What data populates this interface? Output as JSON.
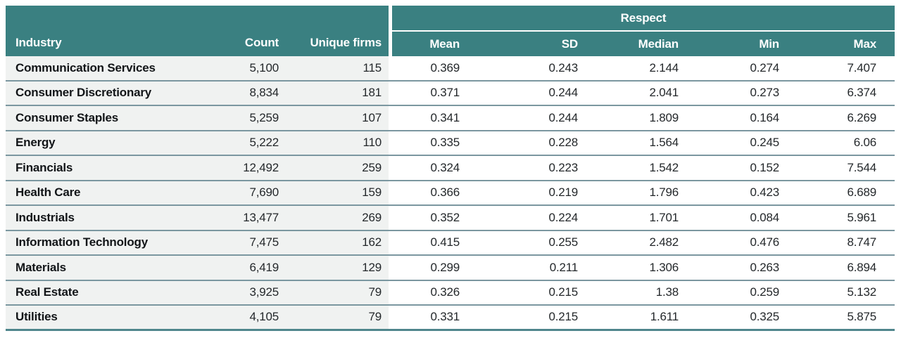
{
  "table": {
    "group_header": "Respect",
    "headers": {
      "industry": "Industry",
      "count": "Count",
      "unique_firms": "Unique firms",
      "mean": "Mean",
      "sd": "SD",
      "median": "Median",
      "min": "Min",
      "max": "Max"
    },
    "rows": [
      {
        "industry": "Communication Services",
        "count": "5,100",
        "unique_firms": "115",
        "mean": "0.369",
        "sd": "0.243",
        "median": "2.144",
        "min": "0.274",
        "max": "7.407"
      },
      {
        "industry": "Consumer Discretionary",
        "count": "8,834",
        "unique_firms": "181",
        "mean": "0.371",
        "sd": "0.244",
        "median": "2.041",
        "min": "0.273",
        "max": "6.374"
      },
      {
        "industry": "Consumer Staples",
        "count": "5,259",
        "unique_firms": "107",
        "mean": "0.341",
        "sd": "0.244",
        "median": "1.809",
        "min": "0.164",
        "max": "6.269"
      },
      {
        "industry": "Energy",
        "count": "5,222",
        "unique_firms": "110",
        "mean": "0.335",
        "sd": "0.228",
        "median": "1.564",
        "min": "0.245",
        "max": "6.06"
      },
      {
        "industry": "Financials",
        "count": "12,492",
        "unique_firms": "259",
        "mean": "0.324",
        "sd": "0.223",
        "median": "1.542",
        "min": "0.152",
        "max": "7.544"
      },
      {
        "industry": "Health Care",
        "count": "7,690",
        "unique_firms": "159",
        "mean": "0.366",
        "sd": "0.219",
        "median": "1.796",
        "min": "0.423",
        "max": "6.689"
      },
      {
        "industry": "Industrials",
        "count": "13,477",
        "unique_firms": "269",
        "mean": "0.352",
        "sd": "0.224",
        "median": "1.701",
        "min": "0.084",
        "max": "5.961"
      },
      {
        "industry": "Information Technology",
        "count": "7,475",
        "unique_firms": "162",
        "mean": "0.415",
        "sd": "0.255",
        "median": "2.482",
        "min": "0.476",
        "max": "8.747"
      },
      {
        "industry": "Materials",
        "count": "6,419",
        "unique_firms": "129",
        "mean": "0.299",
        "sd": "0.211",
        "median": "1.306",
        "min": "0.263",
        "max": "6.894"
      },
      {
        "industry": "Real Estate",
        "count": "3,925",
        "unique_firms": "79",
        "mean": "0.326",
        "sd": "0.215",
        "median": "1.38",
        "min": "0.259",
        "max": "5.132"
      },
      {
        "industry": "Utilities",
        "count": "4,105",
        "unique_firms": "79",
        "mean": "0.331",
        "sd": "0.215",
        "median": "1.611",
        "min": "0.325",
        "max": "5.875"
      }
    ]
  },
  "colors": {
    "header_teal": "#3a8081",
    "row_left_bg": "#f0f2f1",
    "row_right_bg": "#ffffff",
    "divider": "#7b97a0",
    "bottom_border": "#4f868c",
    "header_text": "#ffffff",
    "body_text": "#24282b",
    "industry_text": "#121518"
  }
}
